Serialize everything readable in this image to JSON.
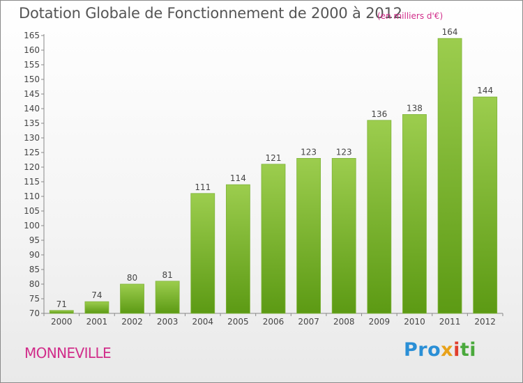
{
  "title": "Dotation Globale de Fonctionnement de 2000 à 2012",
  "subtitle": "(en milliers d'€)",
  "commune": "MONNEVILLE",
  "brand": {
    "p1": "Pro",
    "p2": "x",
    "p3": "i",
    "p4": "ti"
  },
  "colors": {
    "bar_light": "#9ccd4e",
    "bar_dark": "#5c9a14",
    "accent": "#d12d8a",
    "text": "#555555"
  },
  "chart_data": {
    "type": "bar",
    "categories": [
      "2000",
      "2001",
      "2002",
      "2003",
      "2004",
      "2005",
      "2006",
      "2007",
      "2008",
      "2009",
      "2010",
      "2011",
      "2012"
    ],
    "values": [
      71,
      74,
      80,
      81,
      111,
      114,
      121,
      123,
      123,
      136,
      138,
      164,
      144
    ],
    "ylim": [
      70,
      165
    ],
    "yticks": [
      70,
      75,
      80,
      85,
      90,
      95,
      100,
      105,
      110,
      115,
      120,
      125,
      130,
      135,
      140,
      145,
      150,
      155,
      160,
      165
    ],
    "grid": false,
    "data_labels": true
  }
}
